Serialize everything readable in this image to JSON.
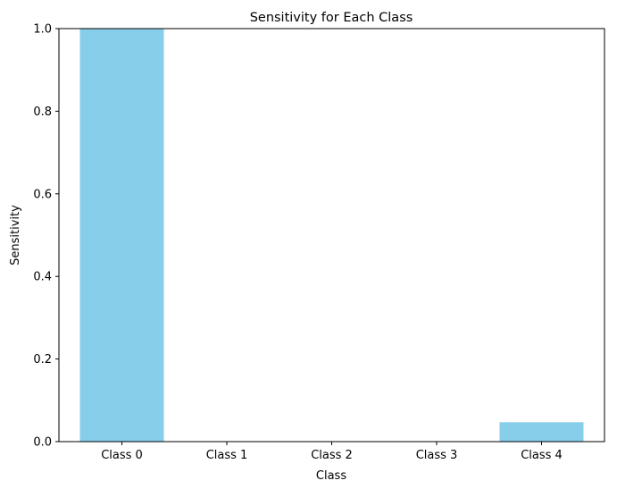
{
  "chart_data": {
    "type": "bar",
    "title": "Sensitivity for Each Class",
    "xlabel": "Class",
    "ylabel": "Sensitivity",
    "categories": [
      "Class 0",
      "Class 1",
      "Class 2",
      "Class 3",
      "Class 4"
    ],
    "values": [
      1.0,
      0.0,
      0.0,
      0.0,
      0.047
    ],
    "ylim": [
      0,
      1
    ],
    "yticks": [
      "0.0",
      "0.2",
      "0.4",
      "0.6",
      "0.8",
      "1.0"
    ],
    "grid": false,
    "legend": "none",
    "bar_color": "#87CEEB"
  }
}
